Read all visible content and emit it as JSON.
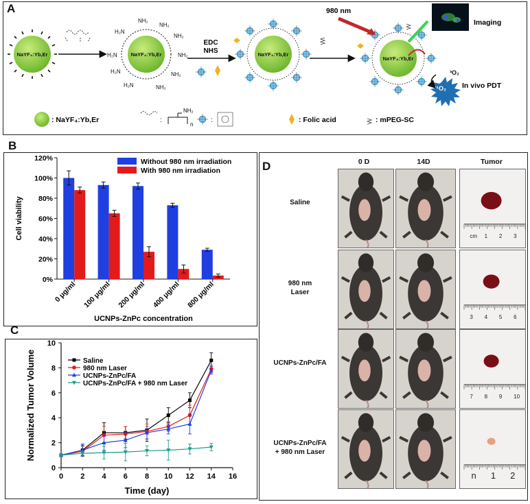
{
  "panel_letters": {
    "a": "A",
    "b": "B",
    "c": "C",
    "d": "D"
  },
  "scheme": {
    "particle_label": "NaYF4:Yb,Er",
    "nh2": "NH2",
    "edc": "EDC",
    "nhs": "NHS",
    "laser_label": "980 nm",
    "imaging_label": "Imaging",
    "singlet_o2": "1O2",
    "triplet_o2": "3O2",
    "pdt_label": "In vivo PDT",
    "legend": {
      "particle": ": NaYF4:Yb,Er",
      "pei_n": "n",
      "fa": ": Folic acid",
      "peg": ": mPEG-SC"
    },
    "colors": {
      "particle": "#8cc63f",
      "arrow_red": "#c0282d",
      "laser_green": "#39d352",
      "burst": "#1f6fb2",
      "zn": "#5bb8e8",
      "fa": "#f0b323"
    }
  },
  "chart_b": {
    "type": "bar",
    "categories": [
      "0 μg/ml",
      "100 μg/ml",
      "200 μg/ml",
      "400 μg/ml",
      "800 μg/ml"
    ],
    "series": [
      {
        "name": "Without 980 nm irradiation",
        "values": [
          100,
          93,
          92,
          73,
          29
        ],
        "errors": [
          7,
          3,
          3,
          2,
          1.5
        ],
        "color": "#1f3fe0"
      },
      {
        "name": "With 980 nm irradiation",
        "values": [
          88,
          65,
          27,
          10,
          3.5
        ],
        "errors": [
          3,
          3,
          5,
          4,
          1.5
        ],
        "color": "#e31a1c"
      }
    ],
    "ylabel": "Cell viability",
    "xlabel": "UCNPs-ZnPc concentration",
    "ylim": [
      0,
      120
    ],
    "yticks": [
      "0%",
      "20%",
      "40%",
      "60%",
      "80%",
      "100%",
      "120%"
    ],
    "ytick_values": [
      0,
      20,
      40,
      60,
      80,
      100,
      120
    ]
  },
  "chart_c": {
    "type": "line",
    "x": [
      0,
      2,
      4,
      6,
      8,
      10,
      12,
      14
    ],
    "series": [
      {
        "name": "Saline",
        "values": [
          1.0,
          1.4,
          2.8,
          2.8,
          3.0,
          4.2,
          5.4,
          8.6
        ],
        "errors": [
          0.05,
          0.4,
          0.8,
          0.5,
          0.9,
          0.6,
          0.6,
          0.6
        ],
        "color": "#000000",
        "marker": "square"
      },
      {
        "name": "980 nm Laser",
        "values": [
          1.0,
          1.3,
          2.6,
          2.7,
          2.9,
          3.3,
          4.2,
          7.9
        ],
        "errors": [
          0.05,
          0.4,
          0.7,
          0.6,
          0.6,
          0.4,
          0.8,
          0.3
        ],
        "color": "#e31a1c",
        "marker": "circle"
      },
      {
        "name": "UCNPs-ZnPc/FA",
        "values": [
          1.0,
          1.4,
          2.0,
          2.2,
          2.8,
          3.1,
          3.5,
          7.8
        ],
        "errors": [
          0.05,
          0.5,
          0.6,
          0.6,
          0.5,
          0.4,
          0.8,
          0.3
        ],
        "color": "#1f3fe0",
        "marker": "triangle"
      },
      {
        "name": "UCNPs-ZnPc/FA + 980 nm Laser",
        "values": [
          1.0,
          1.15,
          1.2,
          1.25,
          1.35,
          1.4,
          1.5,
          1.65
        ],
        "errors": [
          0.05,
          0.2,
          0.5,
          0.7,
          0.4,
          0.8,
          0.4,
          0.3
        ],
        "color": "#1a9c8a",
        "marker": "down-triangle"
      }
    ],
    "xlabel": "Time (day)",
    "ylabel": "Normalized Tumor Volume",
    "xlim": [
      0,
      16
    ],
    "ylim": [
      0,
      10
    ],
    "xticks": [
      "0",
      "2",
      "4",
      "6",
      "8",
      "10",
      "12",
      "14",
      "16"
    ],
    "xtick_values": [
      0,
      2,
      4,
      6,
      8,
      10,
      12,
      14,
      16
    ],
    "yticks": [
      "0",
      "2",
      "4",
      "6",
      "8",
      "10"
    ],
    "ytick_values": [
      0,
      2,
      4,
      6,
      8,
      10
    ]
  },
  "panel_d": {
    "columns": [
      "0 D",
      "14D",
      "Tumor"
    ],
    "rows": [
      {
        "label_lines": [
          "Saline"
        ],
        "ruler": [
          "cm",
          "1",
          "2",
          "3"
        ]
      },
      {
        "label_lines": [
          "980 nm",
          "Laser"
        ],
        "ruler": [
          "3",
          "4",
          "5",
          "6"
        ]
      },
      {
        "label_lines": [
          "UCNPs-ZnPc/FA"
        ],
        "ruler": [
          "7",
          "8",
          "9",
          "10"
        ]
      },
      {
        "label_lines": [
          "UCNPs-ZnPc/FA",
          "+ 980 nm Laser"
        ],
        "ruler": [
          "n",
          "1",
          "2"
        ]
      }
    ]
  }
}
